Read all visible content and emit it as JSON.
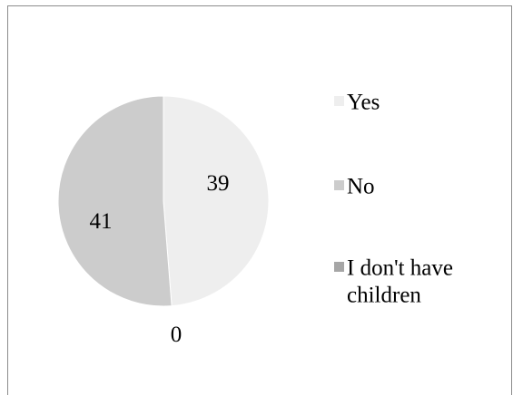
{
  "chart_data": {
    "type": "pie",
    "title": "",
    "categories": [
      "Yes",
      "No",
      "I don't have children"
    ],
    "values": [
      39,
      41,
      0
    ],
    "colors": [
      "#eeeeee",
      "#cccccc",
      "#a6a6a6"
    ],
    "data_labels": [
      "39",
      "41",
      "0"
    ],
    "legend": {
      "position": "right",
      "entries": [
        {
          "lines": [
            "Yes"
          ]
        },
        {
          "lines": [
            "No"
          ]
        },
        {
          "lines": [
            "I don't have",
            "children"
          ]
        }
      ]
    }
  }
}
